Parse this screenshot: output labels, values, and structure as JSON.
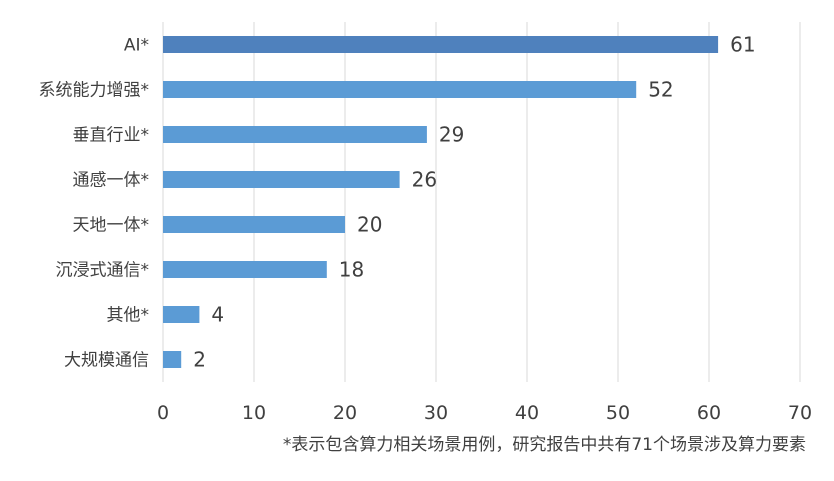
{
  "chart_data": {
    "type": "bar",
    "orientation": "horizontal",
    "categories": [
      "AI*",
      "系统能力增强*",
      "垂直行业*",
      "通感一体*",
      "天地一体*",
      "沉浸式通信*",
      "其他*",
      "大规模通信"
    ],
    "values": [
      61,
      52,
      29,
      26,
      20,
      18,
      4,
      2
    ],
    "bar_colors": [
      "#4f81bd",
      "#5b9bd5",
      "#5b9bd5",
      "#5b9bd5",
      "#5b9bd5",
      "#5b9bd5",
      "#5b9bd5",
      "#5b9bd5"
    ],
    "xlim": [
      0,
      70
    ],
    "x_ticks": [
      0,
      10,
      20,
      30,
      40,
      50,
      60,
      70
    ],
    "grid": "vertical",
    "data_labels": true,
    "footnote": "*表示包含算力相关场景用例，研究报告中共有71个场景涉及算力要素"
  },
  "colors": {
    "grid": "#d9d9d9",
    "text": "#404040"
  }
}
